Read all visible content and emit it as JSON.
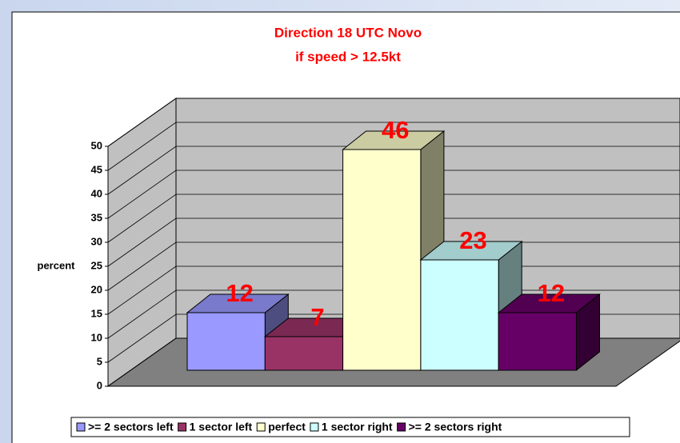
{
  "chart_data": {
    "type": "bar3d",
    "title": "Direction 18 UTC Novo",
    "subtitle": "if speed > 12.5kt",
    "y_label": "percent",
    "series": [
      {
        "name": ">= 2 sectors left",
        "color": "#9999ff",
        "values": [
          12
        ]
      },
      {
        "name": "1 sector left",
        "color": "#993366",
        "values": [
          7
        ]
      },
      {
        "name": "perfect",
        "color": "#ffffcc",
        "values": [
          46
        ]
      },
      {
        "name": "1 sector right",
        "color": "#ccffff",
        "values": [
          23
        ]
      },
      {
        "name": ">= 2 sectors right",
        "color": "#660066",
        "values": [
          12
        ]
      }
    ],
    "ylim": [
      0,
      50
    ],
    "yticks": [
      0,
      5,
      10,
      15,
      20,
      25,
      30,
      35,
      40,
      45,
      50
    ],
    "grid": true,
    "legend": "bottom"
  }
}
